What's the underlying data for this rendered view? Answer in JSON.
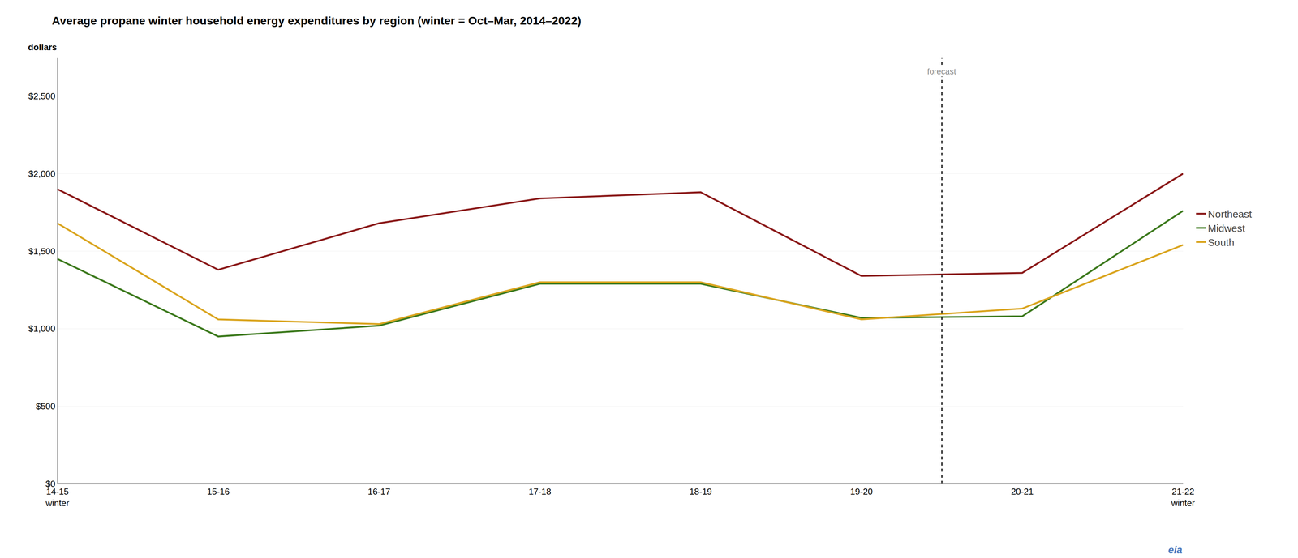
{
  "chart_data": {
    "type": "line",
    "title": "Average propane winter household energy expenditures by region (winter = Oct–Mar, 2014–2022)",
    "y_label": "dollars",
    "categories": [
      "14-15\nwinter",
      "15-16",
      "16-17",
      "17-18",
      "18-19",
      "19-20",
      "20-21",
      "21-22\nwinter"
    ],
    "series": [
      {
        "name": "Northeast",
        "color": "#8B1A1A",
        "values": [
          1900,
          1380,
          1680,
          1840,
          1880,
          1340,
          1360,
          2000
        ]
      },
      {
        "name": "Midwest",
        "color": "#3D7A1E",
        "values": [
          1450,
          950,
          1020,
          1290,
          1290,
          1070,
          1080,
          1760
        ]
      },
      {
        "name": "South",
        "color": "#DAA520",
        "values": [
          1680,
          1060,
          1030,
          1300,
          1300,
          1060,
          1130,
          1540
        ]
      }
    ],
    "ylim": [
      0,
      2750
    ],
    "yticks": [
      {
        "value": 0,
        "label": "$0"
      },
      {
        "value": 500,
        "label": "$500"
      },
      {
        "value": 1000,
        "label": "$1,000"
      },
      {
        "value": 1500,
        "label": "$1,500"
      },
      {
        "value": 2000,
        "label": "$2,000"
      },
      {
        "value": 2500,
        "label": "$2,500"
      }
    ],
    "grid": true,
    "legend": "right",
    "annotations": [
      {
        "text": "forecast",
        "x": "20-21"
      },
      {
        "text": "eia"
      }
    ]
  }
}
